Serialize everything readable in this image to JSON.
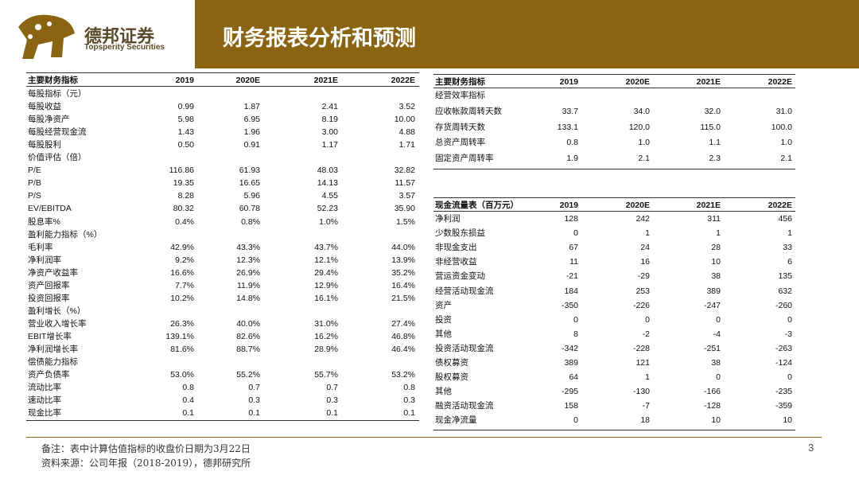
{
  "header": {
    "logo_cn": "德邦证券",
    "logo_en": "Topsperity Securities",
    "title": "财务报表分析和预测"
  },
  "left_table": {
    "columns": [
      "主要财务指标",
      "2019",
      "2020E",
      "2021E",
      "2022E"
    ],
    "rows": [
      [
        "每股指标（元）"
      ],
      [
        "每股收益",
        "0.99",
        "1.87",
        "2.41",
        "3.52"
      ],
      [
        "每股净资产",
        "5.98",
        "6.95",
        "8.19",
        "10.00"
      ],
      [
        "每股经营现金流",
        "1.43",
        "1.96",
        "3.00",
        "4.88"
      ],
      [
        "每股股利",
        "0.50",
        "0.91",
        "1.17",
        "1.71"
      ],
      [
        "价值评估（倍）"
      ],
      [
        "P/E",
        "116.86",
        "61.93",
        "48.03",
        "32.82"
      ],
      [
        "P/B",
        "19.35",
        "16.65",
        "14.13",
        "11.57"
      ],
      [
        "P/S",
        "8.28",
        "5.96",
        "4.55",
        "3.57"
      ],
      [
        "EV/EBITDA",
        "80.32",
        "60.78",
        "52.23",
        "35.90"
      ],
      [
        "股息率%",
        "0.4%",
        "0.8%",
        "1.0%",
        "1.5%"
      ],
      [
        "盈利能力指标（%）"
      ],
      [
        "毛利率",
        "42.9%",
        "43.3%",
        "43.7%",
        "44.0%"
      ],
      [
        "净利润率",
        "9.2%",
        "12.3%",
        "12.1%",
        "13.9%"
      ],
      [
        "净资产收益率",
        "16.6%",
        "26.9%",
        "29.4%",
        "35.2%"
      ],
      [
        "资产回报率",
        "7.7%",
        "11.9%",
        "12.9%",
        "16.4%"
      ],
      [
        "投资回报率",
        "10.2%",
        "14.8%",
        "16.1%",
        "21.5%"
      ],
      [
        "盈利增长（%）"
      ],
      [
        "营业收入增长率",
        "26.3%",
        "40.0%",
        "31.0%",
        "27.4%"
      ],
      [
        "EBIT增长率",
        "139.1%",
        "82.6%",
        "16.2%",
        "46.8%"
      ],
      [
        "净利润增长率",
        "81.6%",
        "88.7%",
        "28.9%",
        "46.4%"
      ],
      [
        "偿债能力指标"
      ],
      [
        "资产负债率",
        "53.0%",
        "55.2%",
        "55.7%",
        "53.2%"
      ],
      [
        "流动比率",
        "0.8",
        "0.7",
        "0.7",
        "0.8"
      ],
      [
        "速动比率",
        "0.4",
        "0.3",
        "0.3",
        "0.3"
      ],
      [
        "现金比率",
        "0.1",
        "0.1",
        "0.1",
        "0.1"
      ]
    ]
  },
  "right_table_1": {
    "columns": [
      "主要财务指标",
      "2019",
      "2020E",
      "2021E",
      "2022E"
    ],
    "rows": [
      [
        "经营效率指标"
      ],
      [
        "应收帐款周转天数",
        "33.7",
        "34.0",
        "32.0",
        "31.0"
      ],
      [
        "存货周转天数",
        "133.1",
        "120.0",
        "115.0",
        "100.0"
      ],
      [
        "总资产周转率",
        "0.8",
        "1.0",
        "1.1",
        "1.0"
      ],
      [
        "固定资产周转率",
        "1.9",
        "2.1",
        "2.3",
        "2.1"
      ]
    ]
  },
  "right_table_2": {
    "columns": [
      "现金流量表（百万元）",
      "2019",
      "2020E",
      "2021E",
      "2022E"
    ],
    "rows": [
      [
        "净利润",
        "128",
        "242",
        "311",
        "456"
      ],
      [
        "少数股东损益",
        "0",
        "1",
        "1",
        "1"
      ],
      [
        "非现金支出",
        "67",
        "24",
        "28",
        "33"
      ],
      [
        "非经营收益",
        "11",
        "16",
        "10",
        "6"
      ],
      [
        "营运资金变动",
        "-21",
        "-29",
        "38",
        "135"
      ],
      [
        "经营活动现金流",
        "184",
        "253",
        "389",
        "632"
      ],
      [
        "资产",
        "-350",
        "-226",
        "-247",
        "-260"
      ],
      [
        "投资",
        "0",
        "0",
        "0",
        "0"
      ],
      [
        "其他",
        "8",
        "-2",
        "-4",
        "-3"
      ],
      [
        "投资活动现金流",
        "-342",
        "-228",
        "-251",
        "-263"
      ],
      [
        "债权募资",
        "389",
        "121",
        "38",
        "-124"
      ],
      [
        "股权募资",
        "64",
        "1",
        "0",
        "0"
      ],
      [
        "其他",
        "-295",
        "-130",
        "-166",
        "-235"
      ],
      [
        "融资活动现金流",
        "158",
        "-7",
        "-128",
        "-359"
      ],
      [
        "现金净流量",
        "0",
        "18",
        "10",
        "10"
      ]
    ]
  },
  "footer": {
    "note": "备注：表中计算估值指标的收盘价日期为3月22日",
    "source": "资料来源：公司年报（2018-2019），德邦研究所",
    "page": "3"
  }
}
